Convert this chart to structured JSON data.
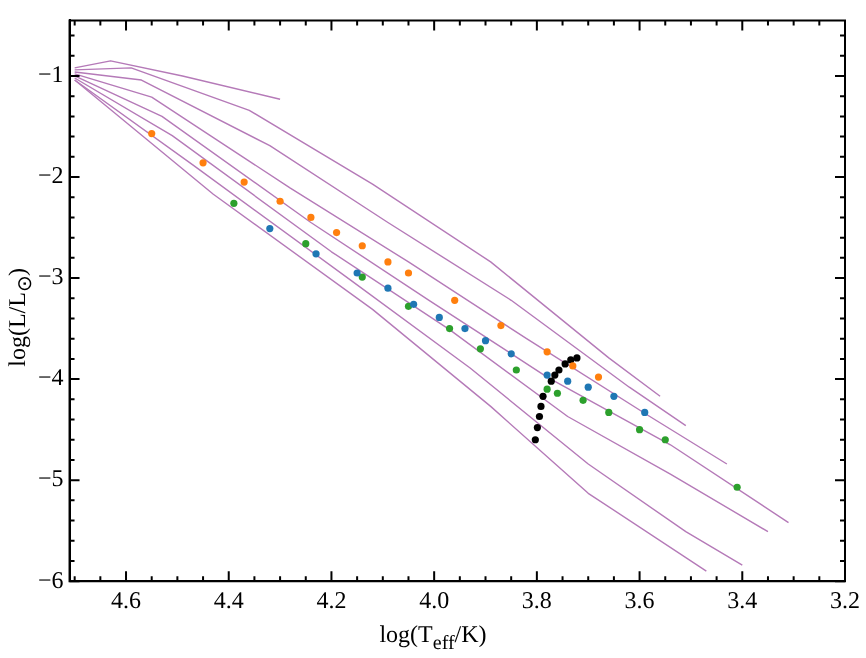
{
  "chart_data": {
    "type": "scatter",
    "xlabel": "log(T$_{eff}$/K)",
    "ylabel": "log(L/L$_{⊙}$)",
    "xlim": [
      4.71,
      3.2
    ],
    "ylim": [
      -6,
      -0.45
    ],
    "xticks": [
      {
        "value": 4.7,
        "label": null
      },
      {
        "value": 4.65,
        "label": null
      },
      {
        "value": 4.6,
        "label": "4.6"
      },
      {
        "value": 4.55,
        "label": null
      },
      {
        "value": 4.5,
        "label": null
      },
      {
        "value": 4.45,
        "label": null
      },
      {
        "value": 4.4,
        "label": "4.4"
      },
      {
        "value": 4.35,
        "label": null
      },
      {
        "value": 4.3,
        "label": null
      },
      {
        "value": 4.25,
        "label": null
      },
      {
        "value": 4.2,
        "label": "4.2"
      },
      {
        "value": 4.15,
        "label": null
      },
      {
        "value": 4.1,
        "label": null
      },
      {
        "value": 4.05,
        "label": null
      },
      {
        "value": 4.0,
        "label": "4.0"
      },
      {
        "value": 3.95,
        "label": null
      },
      {
        "value": 3.9,
        "label": null
      },
      {
        "value": 3.85,
        "label": null
      },
      {
        "value": 3.8,
        "label": "3.8"
      },
      {
        "value": 3.75,
        "label": null
      },
      {
        "value": 3.7,
        "label": null
      },
      {
        "value": 3.65,
        "label": null
      },
      {
        "value": 3.6,
        "label": "3.6"
      },
      {
        "value": 3.55,
        "label": null
      },
      {
        "value": 3.5,
        "label": null
      },
      {
        "value": 3.45,
        "label": null
      },
      {
        "value": 3.4,
        "label": "3.4"
      },
      {
        "value": 3.35,
        "label": null
      },
      {
        "value": 3.3,
        "label": null
      },
      {
        "value": 3.25,
        "label": null
      },
      {
        "value": 3.2,
        "label": "3.2"
      }
    ],
    "yticks": [
      {
        "value": -6,
        "label": "−6"
      },
      {
        "value": -5.8,
        "label": null
      },
      {
        "value": -5.6,
        "label": null
      },
      {
        "value": -5.4,
        "label": null
      },
      {
        "value": -5.2,
        "label": null
      },
      {
        "value": -5,
        "label": "−5"
      },
      {
        "value": -4.8,
        "label": null
      },
      {
        "value": -4.6,
        "label": null
      },
      {
        "value": -4.4,
        "label": null
      },
      {
        "value": -4.2,
        "label": null
      },
      {
        "value": -4,
        "label": "−4"
      },
      {
        "value": -3.8,
        "label": null
      },
      {
        "value": -3.6,
        "label": null
      },
      {
        "value": -3.4,
        "label": null
      },
      {
        "value": -3.2,
        "label": null
      },
      {
        "value": -3,
        "label": "−3"
      },
      {
        "value": -2.8,
        "label": null
      },
      {
        "value": -2.6,
        "label": null
      },
      {
        "value": -2.4,
        "label": null
      },
      {
        "value": -2.2,
        "label": null
      },
      {
        "value": -2,
        "label": "−2"
      },
      {
        "value": -1.8,
        "label": null
      },
      {
        "value": -1.6,
        "label": null
      },
      {
        "value": -1.4,
        "label": null
      },
      {
        "value": -1.2,
        "label": null
      },
      {
        "value": -1,
        "label": "−1"
      },
      {
        "value": -0.8,
        "label": null
      },
      {
        "value": -0.6,
        "label": null
      }
    ],
    "grid": false,
    "legend": false,
    "marker": "circle",
    "series": [
      {
        "type": "line",
        "marker": "none",
        "color": "#b57ab8",
        "x": [
          4.7,
          4.63,
          4.49,
          4.3
        ],
        "values": [
          -0.92,
          -0.85,
          -1.0,
          -1.23
        ]
      },
      {
        "type": "line",
        "marker": "none",
        "color": "#b57ab8",
        "x": [
          4.7,
          4.59,
          4.36,
          4.12,
          3.89,
          3.66,
          3.56
        ],
        "values": [
          -0.94,
          -0.92,
          -1.34,
          -2.07,
          -2.84,
          -3.79,
          -4.17
        ]
      },
      {
        "type": "line",
        "marker": "none",
        "color": "#b57ab8",
        "x": [
          4.7,
          4.57,
          4.32,
          4.09,
          3.85,
          3.62,
          3.51
        ],
        "values": [
          -0.96,
          -1.04,
          -1.69,
          -2.45,
          -3.22,
          -4.08,
          -4.46
        ]
      },
      {
        "type": "line",
        "marker": "none",
        "color": "#b57ab8",
        "x": [
          4.7,
          4.55,
          4.28,
          4.05,
          3.82,
          3.58,
          3.43
        ],
        "values": [
          -0.98,
          -1.21,
          -2.11,
          -2.84,
          -3.6,
          -4.37,
          -4.84
        ]
      },
      {
        "type": "line",
        "marker": "none",
        "color": "#b57ab8",
        "x": [
          4.7,
          4.53,
          4.24,
          4.01,
          3.78,
          3.54,
          3.31
        ],
        "values": [
          -1.0,
          -1.4,
          -2.45,
          -3.22,
          -3.98,
          -4.65,
          -5.42
        ]
      },
      {
        "type": "line",
        "marker": "none",
        "color": "#b57ab8",
        "x": [
          4.7,
          4.51,
          4.2,
          3.97,
          3.74,
          3.54,
          3.35
        ],
        "values": [
          -1.02,
          -1.59,
          -2.74,
          -3.51,
          -4.37,
          -4.94,
          -5.51
        ]
      },
      {
        "type": "line",
        "marker": "none",
        "color": "#b57ab8",
        "x": [
          4.7,
          4.47,
          4.16,
          3.93,
          3.7,
          3.51,
          3.4
        ],
        "values": [
          -1.04,
          -1.88,
          -3.03,
          -3.89,
          -4.84,
          -5.51,
          -5.84
        ]
      },
      {
        "type": "line",
        "marker": "none",
        "color": "#b57ab8",
        "x": [
          4.7,
          4.43,
          4.12,
          3.89,
          3.7,
          3.47
        ],
        "values": [
          -1.04,
          -2.17,
          -3.31,
          -4.27,
          -5.13,
          -5.9
        ]
      },
      {
        "color": "#ff7f0e",
        "x": [
          4.55,
          4.45,
          4.37,
          4.3,
          4.24,
          4.19,
          4.14,
          4.09,
          4.05,
          3.96,
          3.87,
          3.78,
          3.73,
          3.68
        ],
        "values": [
          -1.57,
          -1.86,
          -2.05,
          -2.24,
          -2.4,
          -2.55,
          -2.68,
          -2.84,
          -2.95,
          -3.22,
          -3.47,
          -3.73,
          -3.87,
          -3.98
        ]
      },
      {
        "color": "#1f77b4",
        "x": [
          4.32,
          4.23,
          4.15,
          4.09,
          4.04,
          3.99,
          3.94,
          3.9,
          3.85,
          3.78,
          3.74,
          3.7,
          3.65,
          3.59
        ],
        "values": [
          -2.51,
          -2.76,
          -2.95,
          -3.1,
          -3.26,
          -3.39,
          -3.5,
          -3.62,
          -3.75,
          -3.96,
          -4.02,
          -4.08,
          -4.17,
          -4.33
        ]
      },
      {
        "color": "#2ca02c",
        "x": [
          4.39,
          4.25,
          4.14,
          4.05,
          3.97,
          3.91,
          3.84,
          3.78,
          3.76,
          3.71,
          3.66,
          3.6,
          3.55,
          3.41
        ],
        "values": [
          -2.26,
          -2.66,
          -2.99,
          -3.28,
          -3.5,
          -3.7,
          -3.91,
          -4.1,
          -4.14,
          -4.21,
          -4.33,
          -4.5,
          -4.6,
          -5.07
        ]
      },
      {
        "color": "#000000",
        "x": [
          3.803,
          3.799,
          3.795,
          3.792,
          3.788,
          3.78,
          3.772,
          3.765,
          3.757,
          3.745,
          3.734,
          3.722
        ],
        "values": [
          -4.6,
          -4.48,
          -4.37,
          -4.27,
          -4.17,
          null,
          -4.02,
          -3.96,
          -3.91,
          -3.85,
          -3.81,
          -3.79
        ]
      }
    ]
  }
}
